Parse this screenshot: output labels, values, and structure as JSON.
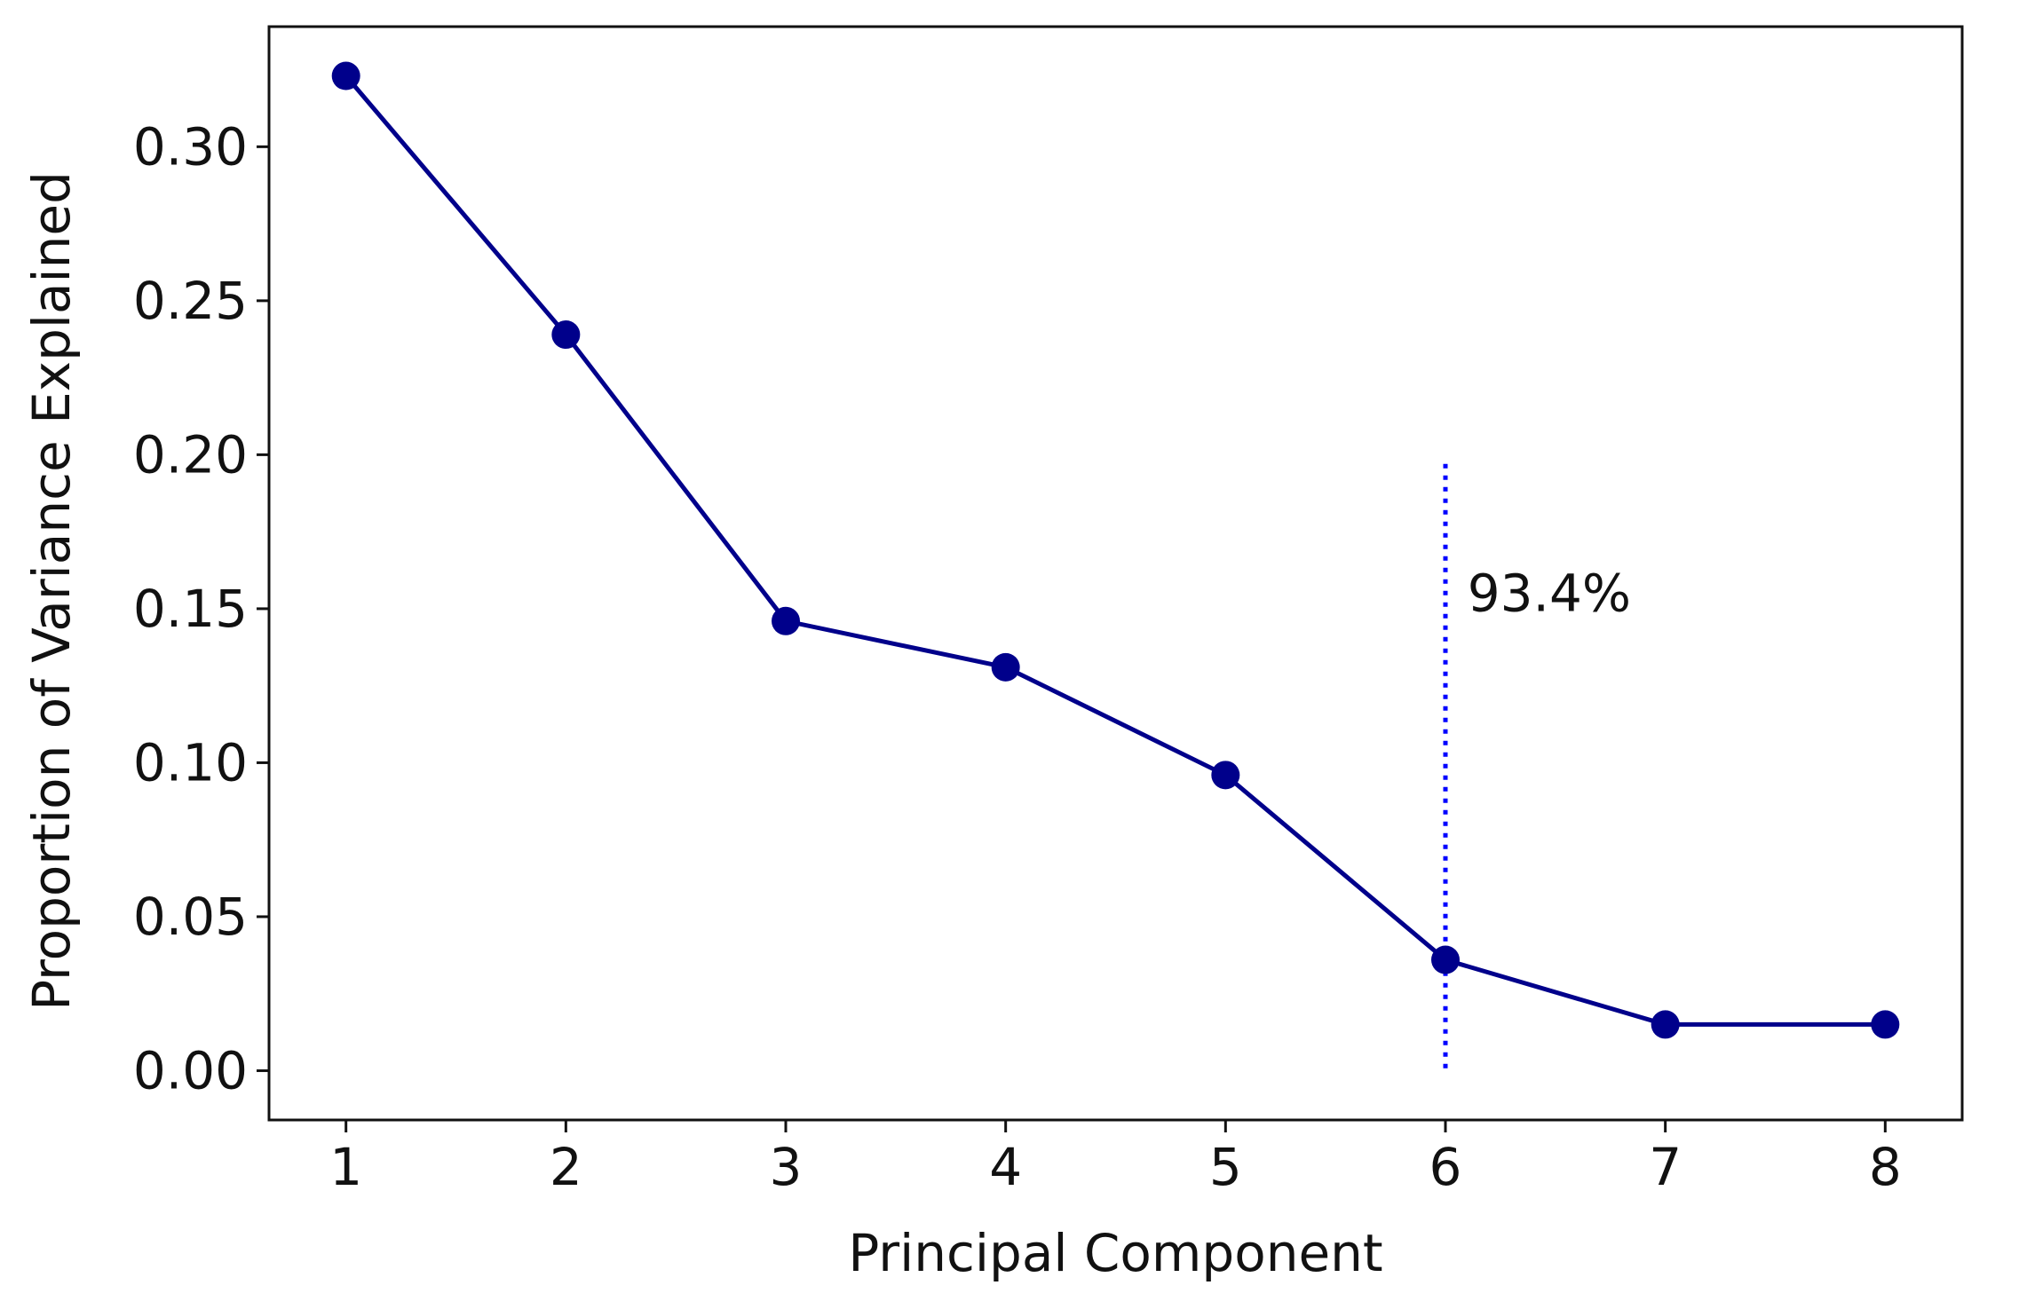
{
  "chart_data": {
    "type": "line",
    "title": "",
    "xlabel": "Principal Component",
    "ylabel": "Proportion of Variance Explained",
    "x": [
      1,
      2,
      3,
      4,
      5,
      6,
      7,
      8
    ],
    "series": [
      {
        "values": [
          0.323,
          0.239,
          0.146,
          0.131,
          0.096,
          0.036,
          0.015,
          0.015
        ],
        "color": "#00008b",
        "marker": "circle"
      }
    ],
    "xlim": [
      0.65,
      8.35
    ],
    "ylim": [
      -0.016,
      0.339
    ],
    "xticks": [
      1,
      2,
      3,
      4,
      5,
      6,
      7,
      8
    ],
    "xtick_labels": [
      "1",
      "2",
      "3",
      "4",
      "5",
      "6",
      "7",
      "8"
    ],
    "yticks": [
      0.0,
      0.05,
      0.1,
      0.15,
      0.2,
      0.25,
      0.3
    ],
    "ytick_labels": [
      "0.00",
      "0.05",
      "0.10",
      "0.15",
      "0.20",
      "0.25",
      "0.30"
    ],
    "grid": false,
    "annotations": [
      {
        "type": "vline",
        "x": 6,
        "ymin": 0.0,
        "ymax": 0.197,
        "style": "dotted",
        "color": "#0000ff",
        "label": "93.4%",
        "label_x": 6.1,
        "label_y": 0.155
      }
    ]
  }
}
